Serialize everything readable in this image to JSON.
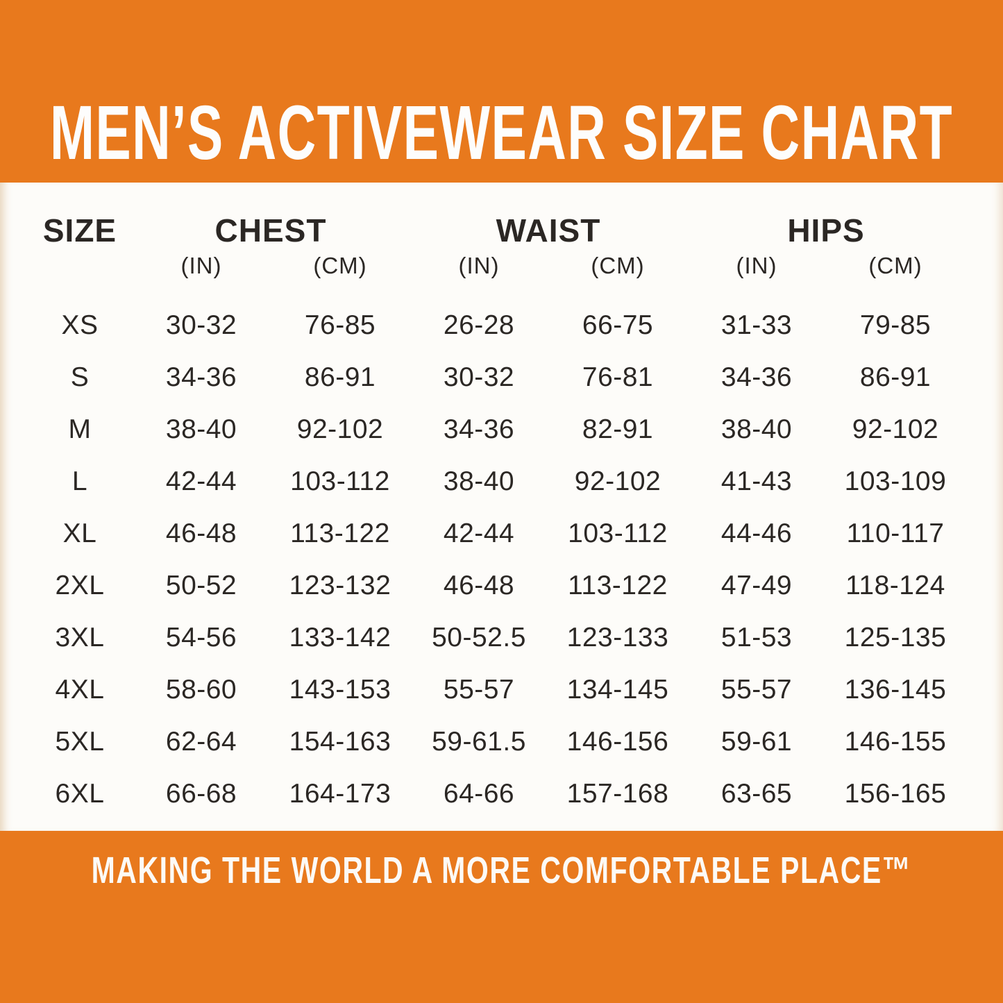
{
  "colors": {
    "orange": "#E8791D",
    "text": "#2B2724",
    "sheet": "#FDFCF9"
  },
  "header": {
    "title": "MEN’S ACTIVEWEAR SIZE CHART"
  },
  "footer": {
    "tagline": "MAKING THE WORLD A MORE COMFORTABLE PLACE™"
  },
  "chart_data": {
    "type": "table",
    "title": "MEN’S ACTIVEWEAR SIZE CHART",
    "size_header": "SIZE",
    "column_groups": [
      {
        "label": "CHEST"
      },
      {
        "label": "WAIST"
      },
      {
        "label": "HIPS"
      }
    ],
    "unit_in": "(IN)",
    "unit_cm": "(CM)",
    "rows": [
      {
        "size": "XS",
        "chest_in": "30-32",
        "chest_cm": "76-85",
        "waist_in": "26-28",
        "waist_cm": "66-75",
        "hips_in": "31-33",
        "hips_cm": "79-85"
      },
      {
        "size": "S",
        "chest_in": "34-36",
        "chest_cm": "86-91",
        "waist_in": "30-32",
        "waist_cm": "76-81",
        "hips_in": "34-36",
        "hips_cm": "86-91"
      },
      {
        "size": "M",
        "chest_in": "38-40",
        "chest_cm": "92-102",
        "waist_in": "34-36",
        "waist_cm": "82-91",
        "hips_in": "38-40",
        "hips_cm": "92-102"
      },
      {
        "size": "L",
        "chest_in": "42-44",
        "chest_cm": "103-112",
        "waist_in": "38-40",
        "waist_cm": "92-102",
        "hips_in": "41-43",
        "hips_cm": "103-109"
      },
      {
        "size": "XL",
        "chest_in": "46-48",
        "chest_cm": "113-122",
        "waist_in": "42-44",
        "waist_cm": "103-112",
        "hips_in": "44-46",
        "hips_cm": "110-117"
      },
      {
        "size": "2XL",
        "chest_in": "50-52",
        "chest_cm": "123-132",
        "waist_in": "46-48",
        "waist_cm": "113-122",
        "hips_in": "47-49",
        "hips_cm": "118-124"
      },
      {
        "size": "3XL",
        "chest_in": "54-56",
        "chest_cm": "133-142",
        "waist_in": "50-52.5",
        "waist_cm": "123-133",
        "hips_in": "51-53",
        "hips_cm": "125-135"
      },
      {
        "size": "4XL",
        "chest_in": "58-60",
        "chest_cm": "143-153",
        "waist_in": "55-57",
        "waist_cm": "134-145",
        "hips_in": "55-57",
        "hips_cm": "136-145"
      },
      {
        "size": "5XL",
        "chest_in": "62-64",
        "chest_cm": "154-163",
        "waist_in": "59-61.5",
        "waist_cm": "146-156",
        "hips_in": "59-61",
        "hips_cm": "146-155"
      },
      {
        "size": "6XL",
        "chest_in": "66-68",
        "chest_cm": "164-173",
        "waist_in": "64-66",
        "waist_cm": "157-168",
        "hips_in": "63-65",
        "hips_cm": "156-165"
      }
    ]
  }
}
